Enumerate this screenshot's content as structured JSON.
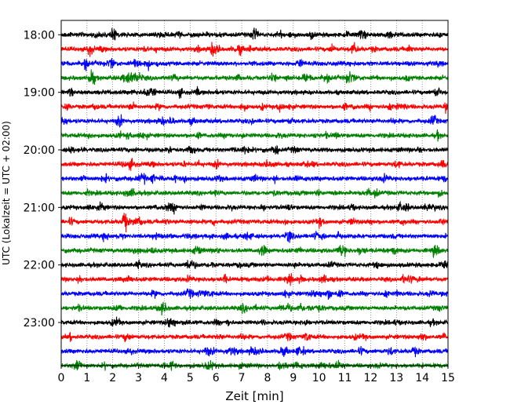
{
  "chart_data": {
    "type": "line",
    "title": "",
    "xlabel": "Zeit  [min]",
    "ylabel": "UTC (Lokalzeit = UTC + 02:00)",
    "xlim": [
      0,
      15
    ],
    "xticks": [
      0,
      1,
      2,
      3,
      4,
      5,
      6,
      7,
      8,
      9,
      10,
      11,
      12,
      13,
      14,
      15
    ],
    "ylim_start": "17:45",
    "ylim_end": "23:45",
    "yticks": [
      "18:00",
      "19:00",
      "20:00",
      "21:00",
      "22:00",
      "23:00"
    ],
    "trace_interval_min": 15,
    "trace_colors": [
      "#000000",
      "#ff0000",
      "#0000ff",
      "#008000"
    ],
    "vertical_gridlines": true,
    "traces": [
      {
        "start": "18:00",
        "color": "#000000"
      },
      {
        "start": "18:15",
        "color": "#ff0000"
      },
      {
        "start": "18:30",
        "color": "#0000ff"
      },
      {
        "start": "18:45",
        "color": "#008000",
        "event_at_min": 2.85
      },
      {
        "start": "19:00",
        "color": "#000000"
      },
      {
        "start": "19:15",
        "color": "#ff0000"
      },
      {
        "start": "19:30",
        "color": "#0000ff"
      },
      {
        "start": "19:45",
        "color": "#008000"
      },
      {
        "start": "20:00",
        "color": "#000000"
      },
      {
        "start": "20:15",
        "color": "#ff0000"
      },
      {
        "start": "20:30",
        "color": "#0000ff"
      },
      {
        "start": "20:45",
        "color": "#008000"
      },
      {
        "start": "21:00",
        "color": "#000000"
      },
      {
        "start": "21:15",
        "color": "#ff0000"
      },
      {
        "start": "21:30",
        "color": "#0000ff"
      },
      {
        "start": "21:45",
        "color": "#008000"
      },
      {
        "start": "22:00",
        "color": "#000000"
      },
      {
        "start": "22:15",
        "color": "#ff0000"
      },
      {
        "start": "22:30",
        "color": "#0000ff"
      },
      {
        "start": "22:45",
        "color": "#008000"
      },
      {
        "start": "23:00",
        "color": "#000000"
      },
      {
        "start": "23:15",
        "color": "#ff0000"
      },
      {
        "start": "23:30",
        "color": "#0000ff"
      },
      {
        "start": "23:45",
        "color": "#008000"
      }
    ]
  }
}
